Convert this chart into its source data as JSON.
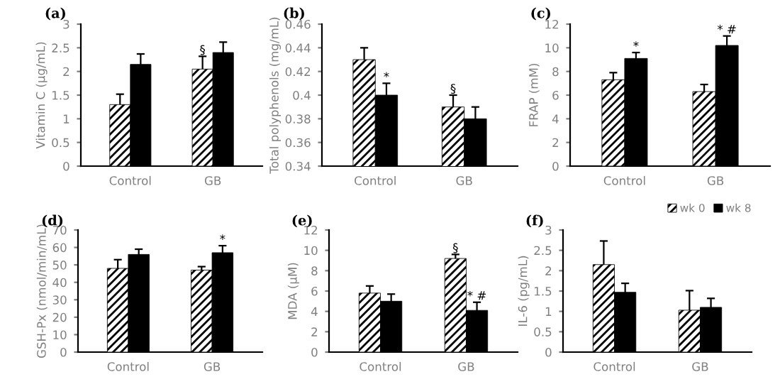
{
  "chart_data": [
    {
      "type": "bar",
      "title": "(a)",
      "ylabel": "Vitamin C (μg/mL)",
      "categories": [
        "Control",
        "GB"
      ],
      "ylim": [
        0,
        3
      ],
      "yticks": [
        0,
        0.5,
        1,
        1.5,
        2,
        2.5,
        3
      ],
      "grid": false,
      "legend": false,
      "series": [
        {
          "color": "#000000",
          "values": [
            1.3,
            2.05
          ],
          "errors": [
            0.22,
            0.27
          ]
        },
        {
          "color": "#000000",
          "values": [
            2.15,
            2.4
          ],
          "errors": [
            0.22,
            0.22
          ]
        }
      ],
      "annotations": [
        {
          "text": "§",
          "x": "GB",
          "y": 2.05
        }
      ]
    },
    {
      "type": "bar",
      "title": "(b)",
      "ylabel": "Total polyphenols (mg/mL)",
      "categories": [
        "Control",
        "GB"
      ],
      "ylim": [
        0.34,
        0.46
      ],
      "yticks": [
        0.34,
        0.36,
        0.38,
        0.4,
        0.42,
        0.44,
        0.46
      ],
      "grid": false,
      "legend": false,
      "series": [
        {
          "color": "#000000",
          "values": [
            0.43,
            0.39
          ],
          "errors": [
            0.01,
            0.01
          ]
        },
        {
          "color": "#000000",
          "values": [
            0.4,
            0.38
          ],
          "errors": [
            0.01,
            0.01
          ]
        }
      ],
      "annotations": [
        {
          "text": "*",
          "x": "Control",
          "y": 0.4
        },
        {
          "text": "§",
          "x": "GB",
          "y": 0.39
        }
      ]
    },
    {
      "type": "bar",
      "title": "(c)",
      "ylabel": "FRAP (mM)",
      "categories": [
        "Control",
        "GB"
      ],
      "ylim": [
        0,
        12
      ],
      "yticks": [
        0,
        2,
        4,
        6,
        8,
        10,
        12
      ],
      "grid": false,
      "legend": false,
      "series": [
        {
          "color": "#000000",
          "values": [
            7.3,
            6.3
          ],
          "errors": [
            0.6,
            0.6
          ]
        },
        {
          "color": "#000000",
          "values": [
            9.1,
            10.2
          ],
          "errors": [
            0.5,
            0.8
          ]
        }
      ],
      "annotations": [
        {
          "text": "*",
          "x": "Control",
          "y": 9.1
        },
        {
          "text": "* #",
          "x": "GB",
          "y": 10.2
        }
      ]
    },
    {
      "type": "bar",
      "title": "(d)",
      "ylabel": "GSH-Px (nmol/min/mL)",
      "categories": [
        "Control",
        "GB"
      ],
      "ylim": [
        0,
        70
      ],
      "yticks": [
        0,
        10,
        20,
        30,
        40,
        50,
        60,
        70
      ],
      "grid": false,
      "legend": false,
      "series": [
        {
          "color": "#000000",
          "values": [
            48,
            47
          ],
          "errors": [
            5,
            2
          ]
        },
        {
          "color": "#000000",
          "values": [
            56,
            57
          ],
          "errors": [
            3,
            4
          ]
        }
      ],
      "annotations": [
        {
          "text": "*",
          "x": "GB",
          "y": 57
        }
      ]
    },
    {
      "type": "bar",
      "title": "(e)",
      "ylabel": "MDA (μM)",
      "categories": [
        "Control",
        "GB"
      ],
      "ylim": [
        0,
        12
      ],
      "yticks": [
        0,
        2,
        4,
        6,
        8,
        10,
        12
      ],
      "grid": false,
      "legend": false,
      "series": [
        {
          "color": "#000000",
          "values": [
            5.8,
            9.2
          ],
          "errors": [
            0.7,
            0.4
          ]
        },
        {
          "color": "#000000",
          "values": [
            5.0,
            4.1
          ],
          "errors": [
            0.7,
            0.8
          ]
        }
      ],
      "annotations": [
        {
          "text": "§",
          "x": "GB",
          "y": 9.2
        },
        {
          "text": "* #",
          "x": "GB",
          "y": 4.1
        }
      ]
    },
    {
      "type": "bar",
      "title": "(f)",
      "ylabel": "IL-6 (pg/mL)",
      "categories": [
        "Control",
        "GB"
      ],
      "ylim": [
        0,
        3
      ],
      "yticks": [
        0,
        0.5,
        1,
        1.5,
        2,
        2.5,
        3
      ],
      "grid": false,
      "legend": "top right",
      "series": [
        {
          "name": "wk 0",
          "color": "#000000",
          "values": [
            2.15,
            1.03
          ],
          "errors": [
            0.58,
            0.48
          ]
        },
        {
          "name": "wk 8",
          "color": "#000000",
          "values": [
            1.47,
            1.1
          ],
          "errors": [
            0.22,
            0.22
          ]
        }
      ]
    }
  ]
}
